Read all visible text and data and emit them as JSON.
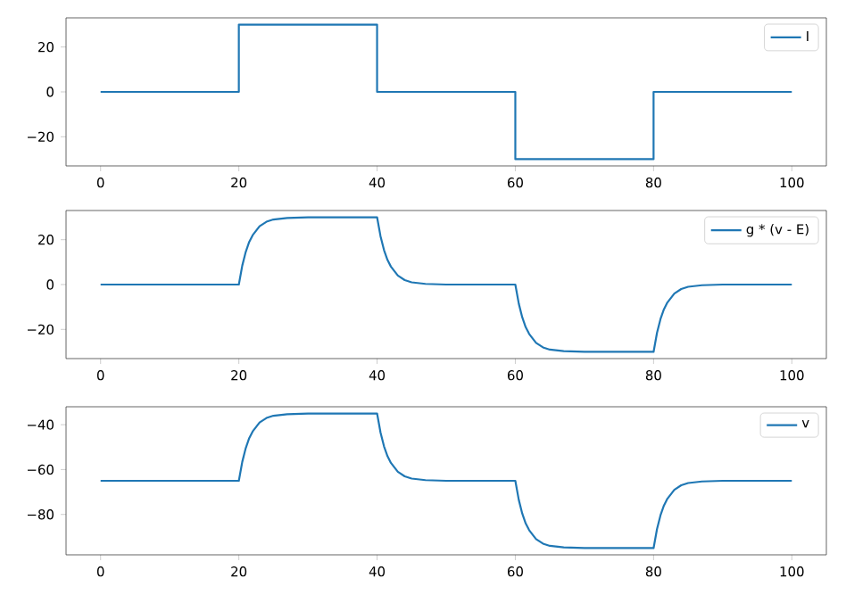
{
  "chart_data": [
    {
      "type": "line",
      "x": [
        0,
        20,
        20,
        40,
        40,
        60,
        60,
        80,
        80,
        100
      ],
      "series": [
        {
          "name": "I",
          "color": "#1f77b4",
          "values": [
            0,
            0,
            30,
            30,
            0,
            0,
            -30,
            -30,
            0,
            0
          ]
        }
      ],
      "xlim": [
        -5,
        105
      ],
      "ylim": [
        -33,
        33
      ],
      "xticks": [
        0,
        20,
        40,
        60,
        80,
        100
      ],
      "yticks": [
        {
          "value": -20,
          "label": "−20"
        },
        0,
        20
      ],
      "legend": "top right",
      "grid": false
    },
    {
      "type": "line",
      "x": [
        0,
        20,
        20.5,
        21,
        21.5,
        22,
        23,
        24,
        25,
        27,
        30,
        40,
        40.5,
        41,
        41.5,
        42,
        43,
        44,
        45,
        47,
        50,
        60,
        60.5,
        61,
        61.5,
        62,
        63,
        64,
        65,
        67,
        70,
        80,
        80.5,
        81,
        81.5,
        82,
        83,
        84,
        85,
        87,
        90,
        100
      ],
      "series": [
        {
          "name": "g * (v - E)",
          "color": "#1f77b4",
          "values": [
            0,
            0,
            8.5,
            14.6,
            19,
            22,
            26,
            28,
            29,
            29.7,
            30,
            30,
            21.5,
            15.4,
            11,
            8,
            4,
            2,
            1,
            0.3,
            0,
            0,
            -8.5,
            -14.6,
            -19,
            -22,
            -26,
            -28,
            -29,
            -29.7,
            -30,
            -30,
            -21.5,
            -15.4,
            -11,
            -8,
            -4,
            -2,
            -1,
            -0.3,
            0,
            0
          ]
        }
      ],
      "xlim": [
        -5,
        105
      ],
      "ylim": [
        -33,
        33
      ],
      "xticks": [
        0,
        20,
        40,
        60,
        80,
        100
      ],
      "yticks": [
        {
          "value": -20,
          "label": "−20"
        },
        0,
        20
      ],
      "legend": "top right",
      "grid": false
    },
    {
      "type": "line",
      "x": [
        0,
        20,
        20.5,
        21,
        21.5,
        22,
        23,
        24,
        25,
        27,
        30,
        40,
        40.5,
        41,
        41.5,
        42,
        43,
        44,
        45,
        47,
        50,
        60,
        60.5,
        61,
        61.5,
        62,
        63,
        64,
        65,
        67,
        70,
        80,
        80.5,
        81,
        81.5,
        82,
        83,
        84,
        85,
        87,
        90,
        100
      ],
      "series": [
        {
          "name": "v",
          "color": "#1f77b4",
          "values": [
            -65,
            -65,
            -56.5,
            -50.4,
            -46,
            -43,
            -39,
            -37,
            -36,
            -35.3,
            -35,
            -35,
            -43.5,
            -49.6,
            -54,
            -57,
            -61,
            -63,
            -64,
            -64.7,
            -65,
            -65,
            -73.5,
            -79.6,
            -84,
            -87,
            -91,
            -93,
            -94,
            -94.7,
            -95,
            -95,
            -86.5,
            -80.4,
            -76,
            -73,
            -69,
            -67,
            -66,
            -65.3,
            -65,
            -65
          ]
        }
      ],
      "xlim": [
        -5,
        105
      ],
      "ylim": [
        -98,
        -32
      ],
      "xticks": [
        0,
        20,
        40,
        60,
        80,
        100
      ],
      "yticks": [
        {
          "value": -80,
          "label": "−80"
        },
        {
          "value": -60,
          "label": "−60"
        },
        {
          "value": -40,
          "label": "−40"
        }
      ],
      "legend": "top right",
      "grid": false
    }
  ]
}
